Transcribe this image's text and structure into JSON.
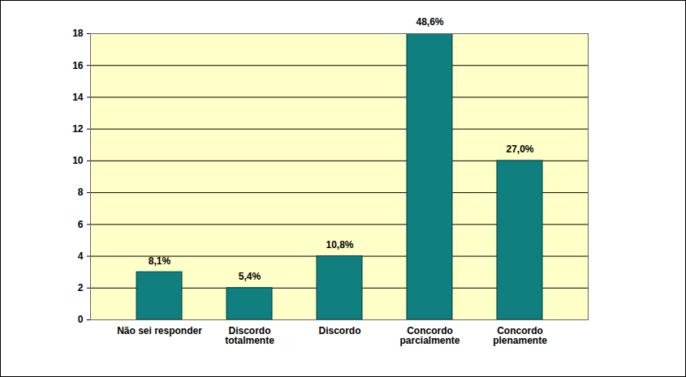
{
  "chart_data": {
    "type": "bar",
    "categories": [
      "Não sei responder",
      "Discordo totalmente",
      "Discordo",
      "Concordo parcialmente",
      "Concordo plenamente"
    ],
    "values": [
      3,
      2,
      4,
      18,
      10
    ],
    "percent_labels": [
      "8,1%",
      "5,4%",
      "10,8%",
      "48,6%",
      "27,0%"
    ],
    "color": "#0f7f7f",
    "ylim": [
      0,
      18
    ],
    "yticks": [
      0,
      2,
      4,
      6,
      8,
      10,
      12,
      14,
      16,
      18
    ],
    "grid": true
  }
}
